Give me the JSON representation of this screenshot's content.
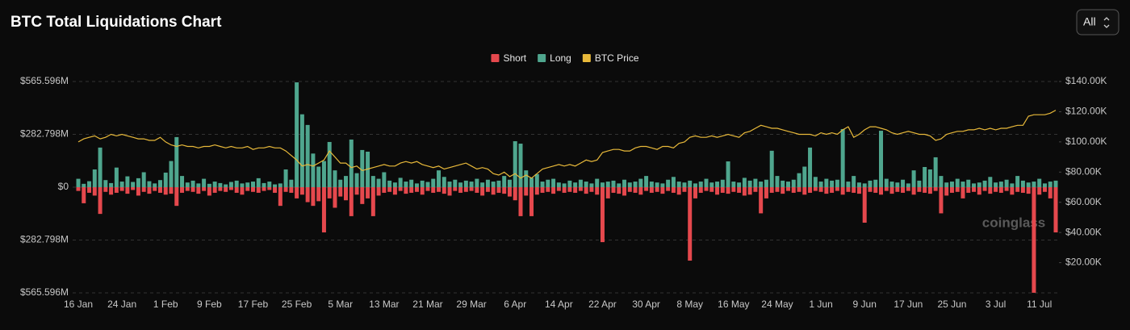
{
  "header": {
    "title": "BTC Total Liquidations Chart",
    "range_select": "All"
  },
  "watermark": "coinglass",
  "chart_data": {
    "type": "bar",
    "categories": [
      "16 Jan",
      null,
      null,
      null,
      null,
      null,
      null,
      null,
      "24 Jan",
      null,
      null,
      null,
      null,
      null,
      null,
      null,
      "1 Feb",
      null,
      null,
      null,
      null,
      null,
      null,
      null,
      "9 Feb",
      null,
      null,
      null,
      null,
      null,
      null,
      null,
      "17 Feb",
      null,
      null,
      null,
      null,
      null,
      null,
      null,
      "25 Feb",
      null,
      null,
      null,
      null,
      null,
      null,
      null,
      "5 Mar",
      null,
      null,
      null,
      null,
      null,
      null,
      null,
      "13 Mar",
      null,
      null,
      null,
      null,
      null,
      null,
      null,
      "21 Mar",
      null,
      null,
      null,
      null,
      null,
      null,
      null,
      "29 Mar",
      null,
      null,
      null,
      null,
      null,
      null,
      null,
      "6 Apr",
      null,
      null,
      null,
      null,
      null,
      null,
      null,
      "14 Apr",
      null,
      null,
      null,
      null,
      null,
      null,
      null,
      "22 Apr",
      null,
      null,
      null,
      null,
      null,
      null,
      null,
      "30 Apr",
      null,
      null,
      null,
      null,
      null,
      null,
      null,
      "8 May",
      null,
      null,
      null,
      null,
      null,
      null,
      null,
      "16 May",
      null,
      null,
      null,
      null,
      null,
      null,
      null,
      "24 May",
      null,
      null,
      null,
      null,
      null,
      null,
      null,
      "1 Jun",
      null,
      null,
      null,
      null,
      null,
      null,
      null,
      "9 Jun",
      null,
      null,
      null,
      null,
      null,
      null,
      null,
      "17 Jun",
      null,
      null,
      null,
      null,
      null,
      null,
      null,
      "25 Jun",
      null,
      null,
      null,
      null,
      null,
      null,
      null,
      "3 Jul",
      null,
      null,
      null,
      null,
      null,
      null,
      null,
      "11 Jul",
      null,
      null,
      null
    ],
    "series": [
      {
        "name": "Short",
        "color": "#e5484d",
        "values": [
          -20,
          -86,
          -30,
          -45,
          -143,
          -25,
          -40,
          -30,
          -20,
          -35,
          -15,
          -45,
          -25,
          -35,
          -20,
          -30,
          -40,
          -35,
          -100,
          -30,
          -20,
          -25,
          -35,
          -20,
          -45,
          -30,
          -20,
          -25,
          -15,
          -30,
          -40,
          -20,
          -25,
          -30,
          -20,
          -15,
          -30,
          -100,
          -25,
          -30,
          -60,
          -40,
          -80,
          -100,
          -75,
          -242,
          -60,
          -110,
          -50,
          -70,
          -155,
          -40,
          -90,
          -60,
          -155,
          -45,
          -30,
          -25,
          -40,
          -20,
          -35,
          -30,
          -25,
          -40,
          -20,
          -30,
          -25,
          -35,
          -45,
          -20,
          -30,
          -25,
          -20,
          -30,
          -45,
          -25,
          -40,
          -30,
          -35,
          -50,
          -70,
          -155,
          -45,
          -155,
          -40,
          -30,
          -25,
          -35,
          -20,
          -30,
          -25,
          -30,
          -20,
          -35,
          -25,
          -40,
          -294,
          -60,
          -30,
          -35,
          -45,
          -25,
          -30,
          -40,
          -20,
          -30,
          -25,
          -35,
          -20,
          -30,
          -40,
          -25,
          -393,
          -60,
          -30,
          -20,
          -25,
          -40,
          -30,
          -35,
          -25,
          -30,
          -45,
          -40,
          -25,
          -140,
          -60,
          -30,
          -25,
          -35,
          -20,
          -30,
          -25,
          -40,
          -30,
          -20,
          -25,
          -35,
          -30,
          -20,
          -40,
          -25,
          -30,
          -35,
          -190,
          -25,
          -30,
          -40,
          -20,
          -35,
          -25,
          -30,
          -20,
          -40,
          -25,
          -30,
          -35,
          -20,
          -140,
          -45,
          -30,
          -25,
          -60,
          -30,
          -25,
          -40,
          -20,
          -35,
          -25,
          -30,
          -20,
          -40,
          -25,
          -30,
          -35,
          -565,
          -40,
          -25,
          -60,
          -242
        ]
      },
      {
        "name": "Long",
        "color": "#4fa68e",
        "values": [
          45,
          18,
          32,
          95,
          212,
          38,
          22,
          105,
          30,
          58,
          28,
          48,
          80,
          32,
          20,
          38,
          78,
          140,
          268,
          60,
          25,
          35,
          20,
          45,
          18,
          30,
          22,
          15,
          28,
          35,
          20,
          25,
          30,
          48,
          22,
          30,
          15,
          20,
          95,
          40,
          561,
          390,
          333,
          180,
          110,
          140,
          242,
          90,
          40,
          60,
          255,
          75,
          199,
          190,
          60,
          45,
          80,
          35,
          25,
          50,
          30,
          40,
          20,
          35,
          28,
          45,
          90,
          55,
          30,
          40,
          25,
          35,
          30,
          45,
          25,
          40,
          30,
          35,
          60,
          40,
          246,
          233,
          90,
          50,
          70,
          30,
          40,
          45,
          25,
          20,
          35,
          25,
          40,
          30,
          20,
          45,
          25,
          30,
          35,
          20,
          40,
          25,
          30,
          45,
          60,
          30,
          25,
          20,
          40,
          55,
          30,
          25,
          35,
          20,
          30,
          45,
          25,
          30,
          40,
          138,
          30,
          25,
          50,
          35,
          45,
          30,
          40,
          195,
          60,
          35,
          30,
          40,
          75,
          110,
          212,
          55,
          30,
          45,
          35,
          40,
          311,
          30,
          60,
          25,
          20,
          35,
          40,
          302,
          45,
          30,
          25,
          40,
          20,
          90,
          35,
          108,
          95,
          160,
          60,
          25,
          30,
          45,
          30,
          40,
          20,
          25,
          35,
          55,
          25,
          30,
          40,
          20,
          60,
          35,
          25,
          30,
          45,
          20,
          30,
          35
        ]
      },
      {
        "name": "BTC Price",
        "color": "#e8b93a",
        "type": "line",
        "axis": "y2",
        "values": [
          100,
          102,
          103,
          104,
          102,
          103,
          105,
          104,
          105,
          104,
          103,
          102,
          102,
          101,
          101,
          103,
          100,
          98,
          97,
          98,
          97,
          97,
          96,
          97,
          97,
          98,
          97,
          96,
          97,
          96,
          96,
          97,
          95,
          96,
          96,
          97,
          96,
          96,
          94,
          91,
          88,
          84,
          85,
          84,
          86,
          88,
          94,
          90,
          86,
          86,
          83,
          84,
          81,
          82,
          83,
          84,
          85,
          84,
          84,
          86,
          87,
          86,
          87,
          85,
          84,
          83,
          84,
          82,
          83,
          84,
          85,
          86,
          84,
          82,
          83,
          82,
          79,
          78,
          80,
          77,
          79,
          76,
          78,
          76,
          79,
          82,
          83,
          84,
          85,
          84,
          85,
          84,
          86,
          88,
          87,
          88,
          93,
          94,
          95,
          95,
          94,
          94,
          96,
          97,
          97,
          96,
          95,
          97,
          97,
          96,
          99,
          100,
          103,
          104,
          103,
          103,
          104,
          103,
          104,
          105,
          104,
          103,
          106,
          107,
          109,
          111,
          110,
          109,
          109,
          108,
          107,
          106,
          105,
          105,
          105,
          104,
          106,
          105,
          106,
          105,
          108,
          110,
          103,
          105,
          108,
          110,
          110,
          109,
          108,
          106,
          105,
          106,
          107,
          106,
          105,
          105,
          104,
          101,
          102,
          105,
          106,
          107,
          107,
          108,
          108,
          109,
          108,
          109,
          108,
          109,
          109,
          110,
          111,
          111,
          117,
          118,
          118,
          118,
          119,
          121
        ]
      }
    ],
    "ylim": [
      -565.596,
      565.596
    ],
    "yticks": [
      {
        "value": 565.596,
        "label": "$565.596M"
      },
      {
        "value": 282.798,
        "label": "$282.798M"
      },
      {
        "value": 0,
        "label": "$0"
      },
      {
        "value": -282.798,
        "label": "$282.798M"
      },
      {
        "value": -565.596,
        "label": "$565.596M"
      }
    ],
    "y2lim": [
      0,
      140
    ],
    "y2ticks": [
      {
        "value": 20,
        "label": "$20.00K"
      },
      {
        "value": 40,
        "label": "$40.00K"
      },
      {
        "value": 60,
        "label": "$60.00K"
      },
      {
        "value": 80,
        "label": "$80.00K"
      },
      {
        "value": 100,
        "label": "$100.00K"
      },
      {
        "value": 120,
        "label": "$120.00K"
      },
      {
        "value": 140,
        "label": "$140.00K"
      }
    ],
    "grid": true,
    "legend": "top"
  }
}
